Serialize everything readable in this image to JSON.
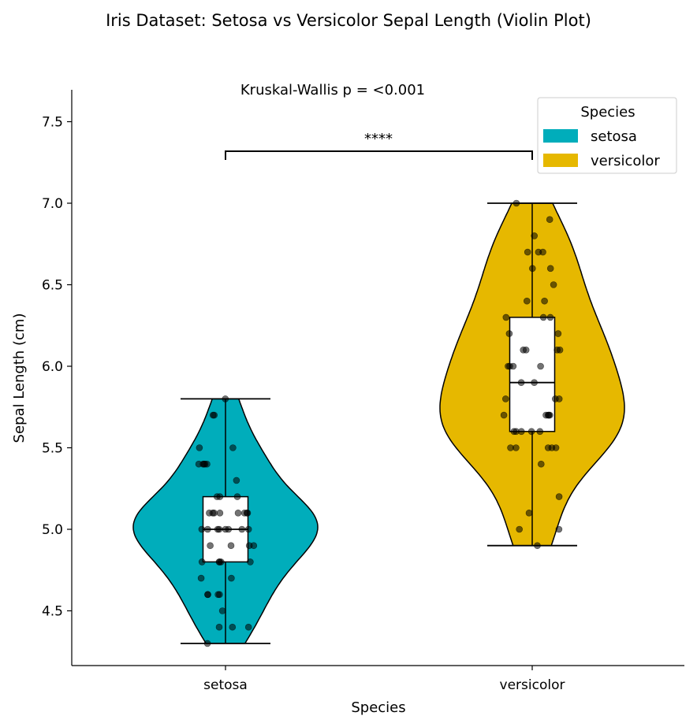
{
  "chart_data": {
    "type": "violin",
    "title": "Iris Dataset: Setosa vs Versicolor Sepal Length (Violin Plot)",
    "xlabel": "Species",
    "ylabel": "Sepal Length (cm)",
    "ylim": [
      4.17,
      7.7
    ],
    "yticks": [
      "4.5",
      "5.0",
      "5.5",
      "6.0",
      "6.5",
      "7.0",
      "7.5"
    ],
    "categories": [
      "setosa",
      "versicolor"
    ],
    "annotation": "Kruskal-Wallis p = <0.001",
    "significance": "****",
    "legend": {
      "title": "Species",
      "position": "upper right"
    },
    "series": [
      {
        "name": "setosa",
        "color": "#00adbb",
        "min": 4.3,
        "q1": 4.8,
        "median": 5.0,
        "q3": 5.2,
        "max": 5.8,
        "points": [
          5.1,
          4.9,
          4.7,
          4.6,
          5.0,
          5.4,
          4.6,
          5.0,
          4.4,
          4.9,
          5.4,
          4.8,
          4.8,
          4.3,
          5.8,
          5.7,
          5.4,
          5.1,
          5.7,
          5.1,
          5.4,
          5.1,
          4.6,
          5.1,
          4.8,
          5.0,
          5.0,
          5.2,
          5.2,
          4.7,
          4.8,
          5.4,
          5.2,
          5.5,
          4.9,
          5.0,
          5.5,
          4.9,
          4.4,
          5.1,
          5.0,
          4.5,
          4.4,
          5.0,
          5.1,
          4.8,
          5.1,
          4.6,
          5.3,
          5.0
        ]
      },
      {
        "name": "versicolor",
        "color": "#e6b800",
        "min": 4.9,
        "q1": 5.6,
        "median": 5.9,
        "q3": 6.3,
        "max": 7.0,
        "points": [
          7.0,
          6.4,
          6.9,
          5.5,
          6.5,
          5.7,
          6.3,
          4.9,
          6.6,
          5.2,
          5.0,
          5.9,
          6.0,
          6.1,
          5.6,
          6.7,
          5.6,
          5.8,
          6.2,
          5.6,
          5.9,
          6.1,
          6.3,
          6.1,
          6.4,
          6.6,
          6.8,
          6.7,
          6.0,
          5.7,
          5.5,
          5.5,
          5.8,
          6.0,
          5.4,
          6.0,
          6.7,
          6.3,
          5.6,
          5.5,
          5.5,
          6.1,
          5.8,
          5.0,
          5.6,
          5.7,
          5.7,
          6.2,
          5.1,
          5.7
        ]
      }
    ]
  }
}
